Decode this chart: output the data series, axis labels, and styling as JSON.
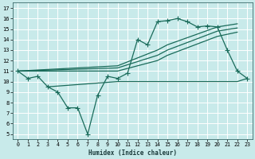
{
  "xlabel": "Humidex (Indice chaleur)",
  "bg_color": "#c8eaea",
  "grid_color": "#b0d8d8",
  "line_color": "#1a6b5a",
  "xlim": [
    -0.5,
    23.5
  ],
  "ylim": [
    4.5,
    17.5
  ],
  "xticks": [
    0,
    1,
    2,
    3,
    4,
    5,
    6,
    7,
    8,
    9,
    10,
    11,
    12,
    13,
    14,
    15,
    16,
    17,
    18,
    19,
    20,
    21,
    22,
    23
  ],
  "yticks": [
    5,
    6,
    7,
    8,
    9,
    10,
    11,
    12,
    13,
    14,
    15,
    16,
    17
  ],
  "line1_x": [
    0,
    1,
    2,
    3,
    4,
    5,
    6,
    7,
    8,
    9,
    10,
    11,
    12,
    13,
    14,
    15,
    16,
    17,
    18,
    19,
    20,
    21,
    22,
    23
  ],
  "line1_y": [
    11,
    10.3,
    10.5,
    9.5,
    9.0,
    7.5,
    7.5,
    5.0,
    8.7,
    10.5,
    10.3,
    10.8,
    14.0,
    13.5,
    15.7,
    15.8,
    16.0,
    15.7,
    15.2,
    15.3,
    15.2,
    13.0,
    11.0,
    10.3
  ],
  "line2_x": [
    0,
    10,
    14,
    15,
    20,
    22
  ],
  "line2_y": [
    11,
    11.5,
    13.0,
    13.5,
    15.2,
    15.5
  ],
  "line3_x": [
    0,
    10,
    14,
    15,
    20,
    22
  ],
  "line3_y": [
    11,
    11.3,
    12.5,
    13.0,
    14.8,
    15.1
  ],
  "line4_x": [
    0,
    10,
    14,
    15,
    20,
    22
  ],
  "line4_y": [
    11,
    11.0,
    12.0,
    12.5,
    14.3,
    14.7
  ],
  "flat_x": [
    3,
    10,
    11,
    12,
    13,
    14,
    15,
    16,
    17,
    18,
    19,
    20,
    21,
    22,
    23
  ],
  "flat_y": [
    9.5,
    10.0,
    10.0,
    10.0,
    10.0,
    10.0,
    10.0,
    10.0,
    10.0,
    10.0,
    10.0,
    10.0,
    10.0,
    10.0,
    10.3
  ]
}
